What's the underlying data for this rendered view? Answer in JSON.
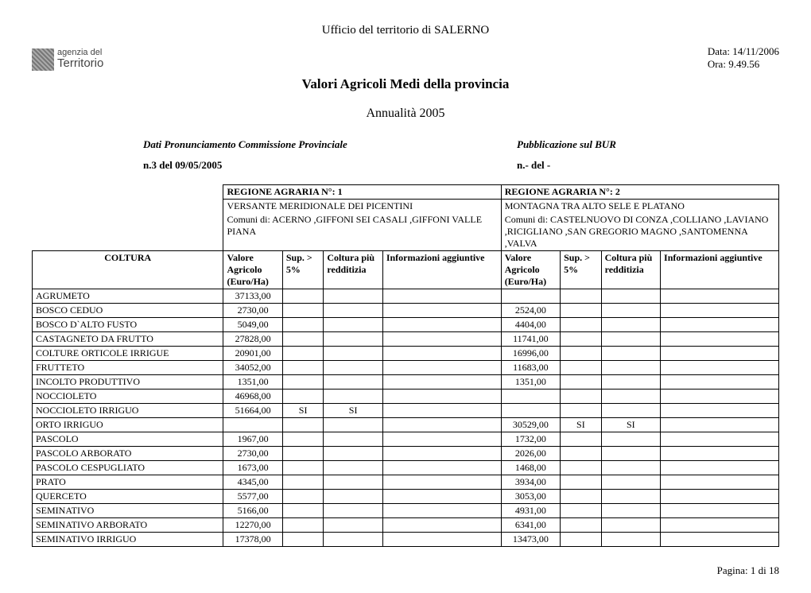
{
  "header": {
    "office": "Ufficio del territorio di  SALERNO",
    "logo_line1": "agenzia del",
    "logo_line2": "Territorio",
    "date_label": "Data: 14/11/2006",
    "time_label": "Ora: 9.49.56",
    "title": "Valori Agricoli Medi della provincia",
    "year": "Annualità  2005"
  },
  "subheader": {
    "left_label": "Dati Pronunciamento Commissione Provinciale",
    "right_label": "Pubblicazione sul BUR",
    "left_value": "n.3 del  09/05/2005",
    "right_value": "n.-  del -"
  },
  "regions": {
    "r1": {
      "title": "REGIONE AGRARIA N°:  1",
      "subtitle": "VERSANTE MERIDIONALE DEI PICENTINI",
      "comuni": "Comuni di: ACERNO ,GIFFONI SEI CASALI ,GIFFONI VALLE PIANA"
    },
    "r2": {
      "title": "REGIONE AGRARIA N°: 2",
      "subtitle": "MONTAGNA TRA ALTO SELE E PLATANO",
      "comuni": "Comuni di: CASTELNUOVO DI CONZA ,COLLIANO ,LAVIANO ,RICIGLIANO ,SAN GREGORIO MAGNO ,SANTOMENNA ,VALVA"
    }
  },
  "columns": {
    "coltura": "COLTURA",
    "valore": "Valore Agricolo (Euro/Ha)",
    "sup": "Sup. > 5%",
    "colt": "Coltura più redditizia",
    "info": "Informazioni aggiuntive"
  },
  "rows": [
    {
      "name": "AGRUMETO",
      "v1": "37133,00",
      "s1": "",
      "c1": "",
      "i1": "",
      "v2": "",
      "s2": "",
      "c2": "",
      "i2": ""
    },
    {
      "name": "BOSCO CEDUO",
      "v1": "2730,00",
      "s1": "",
      "c1": "",
      "i1": "",
      "v2": "2524,00",
      "s2": "",
      "c2": "",
      "i2": ""
    },
    {
      "name": "BOSCO D`ALTO FUSTO",
      "v1": "5049,00",
      "s1": "",
      "c1": "",
      "i1": "",
      "v2": "4404,00",
      "s2": "",
      "c2": "",
      "i2": ""
    },
    {
      "name": "CASTAGNETO DA FRUTTO",
      "v1": "27828,00",
      "s1": "",
      "c1": "",
      "i1": "",
      "v2": "11741,00",
      "s2": "",
      "c2": "",
      "i2": ""
    },
    {
      "name": "COLTURE ORTICOLE IRRIGUE",
      "v1": "20901,00",
      "s1": "",
      "c1": "",
      "i1": "",
      "v2": "16996,00",
      "s2": "",
      "c2": "",
      "i2": ""
    },
    {
      "name": "FRUTTETO",
      "v1": "34052,00",
      "s1": "",
      "c1": "",
      "i1": "",
      "v2": "11683,00",
      "s2": "",
      "c2": "",
      "i2": ""
    },
    {
      "name": "INCOLTO PRODUTTIVO",
      "v1": "1351,00",
      "s1": "",
      "c1": "",
      "i1": "",
      "v2": "1351,00",
      "s2": "",
      "c2": "",
      "i2": ""
    },
    {
      "name": "NOCCIOLETO",
      "v1": "46968,00",
      "s1": "",
      "c1": "",
      "i1": "",
      "v2": "",
      "s2": "",
      "c2": "",
      "i2": ""
    },
    {
      "name": "NOCCIOLETO  IRRIGUO",
      "v1": "51664,00",
      "s1": "SI",
      "c1": "SI",
      "i1": "",
      "v2": "",
      "s2": "",
      "c2": "",
      "i2": ""
    },
    {
      "name": "ORTO IRRIGUO",
      "v1": "",
      "s1": "",
      "c1": "",
      "i1": "",
      "v2": "30529,00",
      "s2": "SI",
      "c2": "SI",
      "i2": ""
    },
    {
      "name": "PASCOLO",
      "v1": "1967,00",
      "s1": "",
      "c1": "",
      "i1": "",
      "v2": "1732,00",
      "s2": "",
      "c2": "",
      "i2": ""
    },
    {
      "name": "PASCOLO ARBORATO",
      "v1": "2730,00",
      "s1": "",
      "c1": "",
      "i1": "",
      "v2": "2026,00",
      "s2": "",
      "c2": "",
      "i2": ""
    },
    {
      "name": "PASCOLO CESPUGLIATO",
      "v1": "1673,00",
      "s1": "",
      "c1": "",
      "i1": "",
      "v2": "1468,00",
      "s2": "",
      "c2": "",
      "i2": ""
    },
    {
      "name": "PRATO",
      "v1": "4345,00",
      "s1": "",
      "c1": "",
      "i1": "",
      "v2": "3934,00",
      "s2": "",
      "c2": "",
      "i2": ""
    },
    {
      "name": "QUERCETO",
      "v1": "5577,00",
      "s1": "",
      "c1": "",
      "i1": "",
      "v2": "3053,00",
      "s2": "",
      "c2": "",
      "i2": ""
    },
    {
      "name": "SEMINATIVO",
      "v1": "5166,00",
      "s1": "",
      "c1": "",
      "i1": "",
      "v2": "4931,00",
      "s2": "",
      "c2": "",
      "i2": ""
    },
    {
      "name": "SEMINATIVO ARBORATO",
      "v1": "12270,00",
      "s1": "",
      "c1": "",
      "i1": "",
      "v2": "6341,00",
      "s2": "",
      "c2": "",
      "i2": ""
    },
    {
      "name": "SEMINATIVO IRRIGUO",
      "v1": "17378,00",
      "s1": "",
      "c1": "",
      "i1": "",
      "v2": "13473,00",
      "s2": "",
      "c2": "",
      "i2": ""
    }
  ],
  "footer": "Pagina: 1 di 18",
  "style": {
    "text_color": "#000000",
    "background": "#ffffff",
    "border_color": "#000000",
    "base_font_size": 13
  }
}
